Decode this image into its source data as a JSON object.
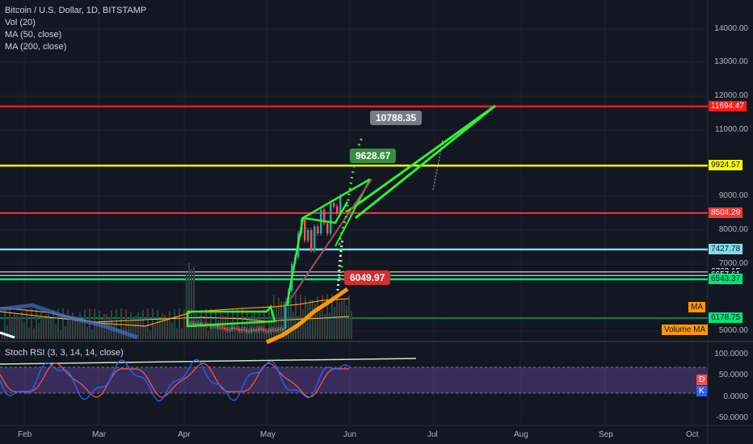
{
  "legend": {
    "title": "Bitcoin / U.S. Dollar, 1D, BITSTAMP",
    "vol": "Vol (20)",
    "ma50": "MA (50, close)",
    "ma200": "MA (200, close)"
  },
  "rsi_label": "Stoch RSI (3, 3, 14, 14, close)",
  "price_axis": [
    "14000.00",
    "13000.00",
    "12000.00",
    "11000.00",
    "9000.00",
    "8000.00",
    "7000.00",
    "5000.00"
  ],
  "rsi_axis": [
    "100.0000",
    "50.0000",
    "0.0000",
    "-50.0000"
  ],
  "time_axis": [
    "Feb",
    "Mar",
    "Apr",
    "May",
    "Jun",
    "Jul",
    "Aug",
    "Sep",
    "Oct"
  ],
  "levels": [
    {
      "value": "11694.47",
      "color": "#ff1a1a"
    },
    {
      "value": "9924.57",
      "color": "#ffff00"
    },
    {
      "value": "8504.29",
      "color": "#ff3333"
    },
    {
      "value": "7427.78",
      "color": "#80deea"
    },
    {
      "value": "6762.15",
      "color": "#ffffff"
    },
    {
      "value": "6657.61",
      "color": "#ffffff"
    },
    {
      "value": "6543.37",
      "color": "#00e676"
    },
    {
      "value": "6178.75",
      "color": "#00e676"
    }
  ],
  "callouts": {
    "high": {
      "value": "10788.35",
      "color": "#787b86"
    },
    "mid": {
      "value": "9628.67",
      "color": "#388e3c"
    },
    "low": {
      "value": "6049.97",
      "color": "#d32f2f"
    }
  },
  "tags": {
    "ma": "MA",
    "volume_ma": "Volume MA",
    "d": "D",
    "k": "K"
  },
  "chart_data": {
    "type": "candlestick",
    "title": "Bitcoin / U.S. Dollar, 1D, BITSTAMP",
    "x_axis": [
      "Feb",
      "Mar",
      "Apr",
      "May",
      "Jun",
      "Jul",
      "Aug",
      "Sep",
      "Oct"
    ],
    "y_axis_ticks": [
      5000,
      7000,
      8000,
      9000,
      11000,
      12000,
      13000,
      14000
    ],
    "horizontal_levels": [
      11694.47,
      9924.57,
      8504.29,
      7427.78,
      6762.15,
      6657.61,
      6543.37,
      6178.75
    ],
    "annotations": [
      "10788.35",
      "9628.67",
      "6049.97"
    ],
    "indicators": [
      "Vol (20)",
      "MA (50, close)",
      "MA (200, close)",
      "Stoch RSI (3, 3, 14, 14, close)"
    ]
  },
  "colors": {
    "background": "#131722",
    "grid": "#1e222d",
    "up": "#26a69a",
    "down": "#ef5350",
    "pattern": "#2ef22e",
    "rsi_band": "#7e57c2"
  }
}
